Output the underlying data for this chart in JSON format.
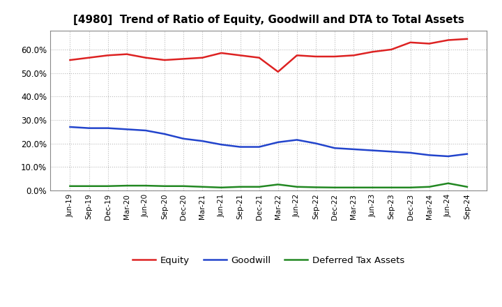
{
  "title": "[4980]  Trend of Ratio of Equity, Goodwill and DTA to Total Assets",
  "labels": [
    "Jun-19",
    "Sep-19",
    "Dec-19",
    "Mar-20",
    "Jun-20",
    "Sep-20",
    "Dec-20",
    "Mar-21",
    "Jun-21",
    "Sep-21",
    "Dec-21",
    "Mar-22",
    "Jun-22",
    "Sep-22",
    "Dec-22",
    "Mar-23",
    "Jun-23",
    "Sep-23",
    "Dec-23",
    "Mar-24",
    "Jun-24",
    "Sep-24"
  ],
  "equity": [
    55.5,
    56.5,
    57.5,
    58.0,
    56.5,
    55.5,
    56.0,
    56.5,
    58.5,
    57.5,
    56.5,
    50.5,
    57.5,
    57.0,
    57.0,
    57.5,
    59.0,
    60.0,
    63.0,
    62.5,
    64.0,
    64.5
  ],
  "goodwill": [
    27.0,
    26.5,
    26.5,
    26.0,
    25.5,
    24.0,
    22.0,
    21.0,
    19.5,
    18.5,
    18.5,
    20.5,
    21.5,
    20.0,
    18.0,
    17.5,
    17.0,
    16.5,
    16.0,
    15.0,
    14.5,
    15.5
  ],
  "dta": [
    1.8,
    1.8,
    1.8,
    2.0,
    2.0,
    1.8,
    1.8,
    1.5,
    1.2,
    1.5,
    1.5,
    2.5,
    1.5,
    1.3,
    1.2,
    1.2,
    1.2,
    1.2,
    1.2,
    1.5,
    3.0,
    1.5
  ],
  "equity_color": "#dd2222",
  "goodwill_color": "#2244cc",
  "dta_color": "#228822",
  "ylim": [
    0,
    68
  ],
  "yticks": [
    0,
    10,
    20,
    30,
    40,
    50,
    60
  ],
  "ytick_labels": [
    "0.0%",
    "10.0%",
    "20.0%",
    "30.0%",
    "40.0%",
    "50.0%",
    "60.0%"
  ],
  "legend_equity": "Equity",
  "legend_goodwill": "Goodwill",
  "legend_dta": "Deferred Tax Assets",
  "line_width": 1.8,
  "background_color": "#ffffff",
  "grid_color": "#bbbbbb"
}
